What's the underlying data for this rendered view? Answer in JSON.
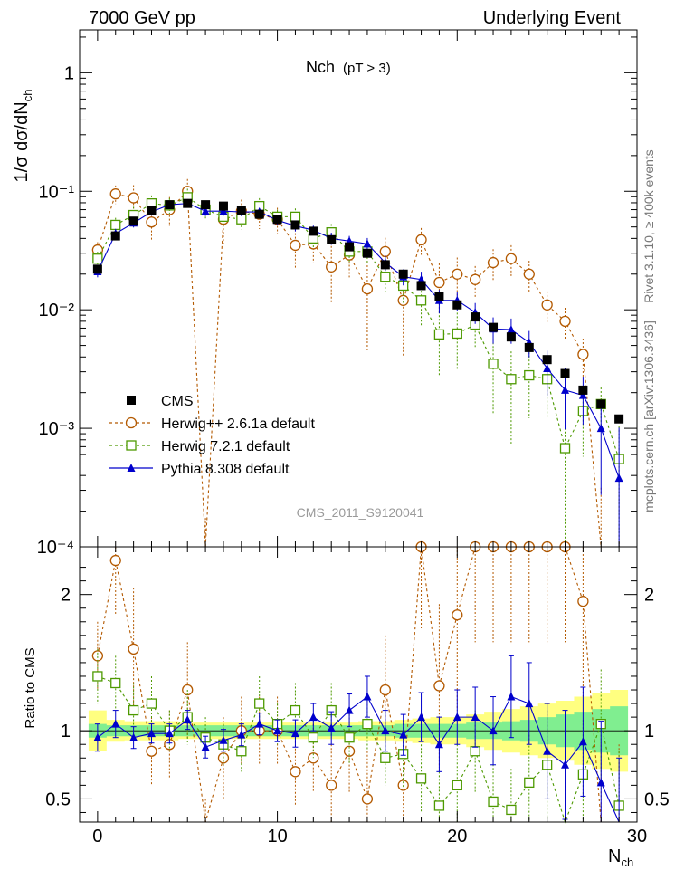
{
  "header": {
    "left": "7000 GeV pp",
    "right": "Underlying Event"
  },
  "side": {
    "rivet": "Rivet 3.1.10, ≥ 400k events",
    "mcplots": "mcplots.cern.ch [arXiv:1306.3436]"
  },
  "chart_data": {
    "type": "line",
    "title": "Nch",
    "title_sub": "(pT >  3)",
    "watermark": "CMS_2011_S9120041",
    "xlabel": "N",
    "xlabel_sub": "ch",
    "ylabel": "1/σ dσ/dN",
    "ylabel_sub": "ch",
    "ratio_ylabel": "Ratio to CMS",
    "x_range": [
      -1,
      30
    ],
    "y_range": [
      0.0001,
      2.3
    ],
    "y_scale": "log",
    "ratio_range": [
      0.33,
      2.35
    ],
    "x_ticks": [
      0,
      10,
      20,
      30
    ],
    "y_tick_labels": [
      "10⁻⁴",
      "10⁻³",
      "10⁻²",
      "10⁻¹",
      "1"
    ],
    "ratio_ticks": [
      0.5,
      1,
      2
    ],
    "ratio_tick_labels": [
      "0.5",
      "1",
      "2"
    ],
    "legend_position": "lower-left",
    "data": {
      "name": "CMS",
      "color": "#000000",
      "x": [
        0,
        1,
        2,
        3,
        4,
        5,
        6,
        7,
        8,
        9,
        10,
        11,
        12,
        13,
        14,
        15,
        16,
        17,
        18,
        19,
        20,
        21,
        22,
        23,
        24,
        25,
        26,
        27,
        28,
        29
      ],
      "y": [
        0.022,
        0.042,
        0.056,
        0.069,
        0.077,
        0.079,
        0.077,
        0.075,
        0.069,
        0.064,
        0.058,
        0.052,
        0.046,
        0.039,
        0.034,
        0.03,
        0.024,
        0.02,
        0.016,
        0.013,
        0.011,
        0.0087,
        0.0071,
        0.0059,
        0.0048,
        0.0038,
        0.0029,
        0.0021,
        0.0016,
        0.0012
      ]
    },
    "series": [
      {
        "name": "Herwig++ 2.6.1a default",
        "color": "#b35900",
        "marker": "circle",
        "y": [
          0.032,
          0.095,
          0.088,
          0.055,
          0.07,
          0.1,
          7e-05,
          0.058,
          0.068,
          0.064,
          0.058,
          0.035,
          0.036,
          0.023,
          0.029,
          0.015,
          0.031,
          0.012,
          0.039,
          0.017,
          0.02,
          0.018,
          0.025,
          0.027,
          0.02,
          0.011,
          0.008,
          0.0042,
          7e-05,
          7e-05
        ],
        "ratio": [
          1.55,
          2.25,
          1.6,
          0.85,
          0.9,
          1.3,
          0.2,
          0.8,
          1.0,
          1.0,
          1.0,
          0.7,
          0.8,
          0.6,
          0.85,
          0.5,
          1.3,
          0.6,
          2.35,
          1.33,
          1.85,
          2.35,
          2.35,
          2.35,
          2.35,
          2.35,
          2.35,
          1.95,
          0.2,
          0.2
        ],
        "ratio_err": [
          0.25,
          0.4,
          0.45,
          0.25,
          0.25,
          0.35,
          0.3,
          0.3,
          0.25,
          0.25,
          0.25,
          0.25,
          0.25,
          0.3,
          0.3,
          0.35,
          0.4,
          0.4,
          0.6,
          0.6,
          0.7,
          0.7,
          0.7,
          0.7,
          0.7,
          0.7,
          0.7,
          0.7,
          0.7,
          0.7
        ]
      },
      {
        "name": "Herwig 7.2.1 default",
        "color": "#4d9900",
        "marker": "square",
        "y": [
          0.027,
          0.052,
          0.063,
          0.079,
          0.076,
          0.089,
          0.07,
          0.061,
          0.058,
          0.075,
          0.061,
          0.061,
          0.04,
          0.045,
          0.031,
          0.031,
          0.019,
          0.016,
          0.012,
          0.0062,
          0.0063,
          0.0075,
          0.0035,
          0.0026,
          0.0028,
          0.0026,
          0.00068,
          0.0014,
          0.0016,
          0.00055
        ],
        "ratio": [
          1.4,
          1.35,
          1.15,
          1.2,
          1.0,
          1.1,
          0.95,
          0.9,
          0.85,
          1.2,
          1.05,
          1.15,
          0.95,
          1.15,
          0.95,
          1.05,
          0.8,
          0.83,
          0.65,
          0.45,
          0.6,
          0.85,
          0.48,
          0.42,
          0.62,
          0.75,
          0.25,
          0.68,
          1.05,
          0.45
        ],
        "ratio_err": [
          0.2,
          0.2,
          0.2,
          0.2,
          0.15,
          0.2,
          0.15,
          0.15,
          0.15,
          0.2,
          0.15,
          0.2,
          0.15,
          0.2,
          0.2,
          0.2,
          0.2,
          0.25,
          0.25,
          0.25,
          0.3,
          0.3,
          0.3,
          0.3,
          0.35,
          0.4,
          0.4,
          0.4,
          0.4,
          0.4
        ]
      },
      {
        "name": "Pythia 8.308 default",
        "color": "#0000cc",
        "marker": "triangle",
        "y": [
          0.021,
          0.044,
          0.054,
          0.067,
          0.077,
          0.079,
          0.068,
          0.068,
          0.067,
          0.067,
          0.057,
          0.051,
          0.047,
          0.04,
          0.038,
          0.036,
          0.025,
          0.019,
          0.018,
          0.012,
          0.012,
          0.0095,
          0.0069,
          0.0068,
          0.0053,
          0.0032,
          0.0021,
          0.0019,
          0.001,
          0.00038
        ],
        "ratio": [
          0.95,
          1.05,
          0.95,
          0.98,
          0.98,
          1.08,
          0.88,
          0.93,
          0.97,
          1.05,
          1.0,
          0.98,
          1.1,
          1.02,
          1.15,
          1.25,
          1.0,
          0.97,
          1.1,
          0.9,
          1.1,
          1.1,
          1.0,
          1.25,
          1.2,
          0.85,
          0.75,
          0.92,
          0.62,
          0.3
        ],
        "ratio_err": [
          0.1,
          0.1,
          0.08,
          0.07,
          0.07,
          0.07,
          0.08,
          0.08,
          0.08,
          0.08,
          0.08,
          0.1,
          0.1,
          0.12,
          0.12,
          0.15,
          0.15,
          0.15,
          0.18,
          0.2,
          0.2,
          0.22,
          0.25,
          0.3,
          0.3,
          0.35,
          0.4,
          0.4,
          0.45,
          0.5
        ]
      }
    ],
    "band_inner": [
      0.05,
      0.04,
      0.04,
      0.04,
      0.04,
      0.04,
      0.04,
      0.04,
      0.04,
      0.04,
      0.04,
      0.04,
      0.04,
      0.04,
      0.04,
      0.04,
      0.04,
      0.05,
      0.05,
      0.05,
      0.05,
      0.06,
      0.06,
      0.07,
      0.08,
      0.1,
      0.12,
      0.14,
      0.16,
      0.18
    ],
    "band_outer": [
      0.15,
      0.08,
      0.07,
      0.07,
      0.07,
      0.06,
      0.06,
      0.06,
      0.06,
      0.06,
      0.06,
      0.06,
      0.06,
      0.06,
      0.06,
      0.07,
      0.07,
      0.08,
      0.09,
      0.1,
      0.1,
      0.12,
      0.14,
      0.16,
      0.18,
      0.2,
      0.22,
      0.25,
      0.28,
      0.3
    ]
  }
}
